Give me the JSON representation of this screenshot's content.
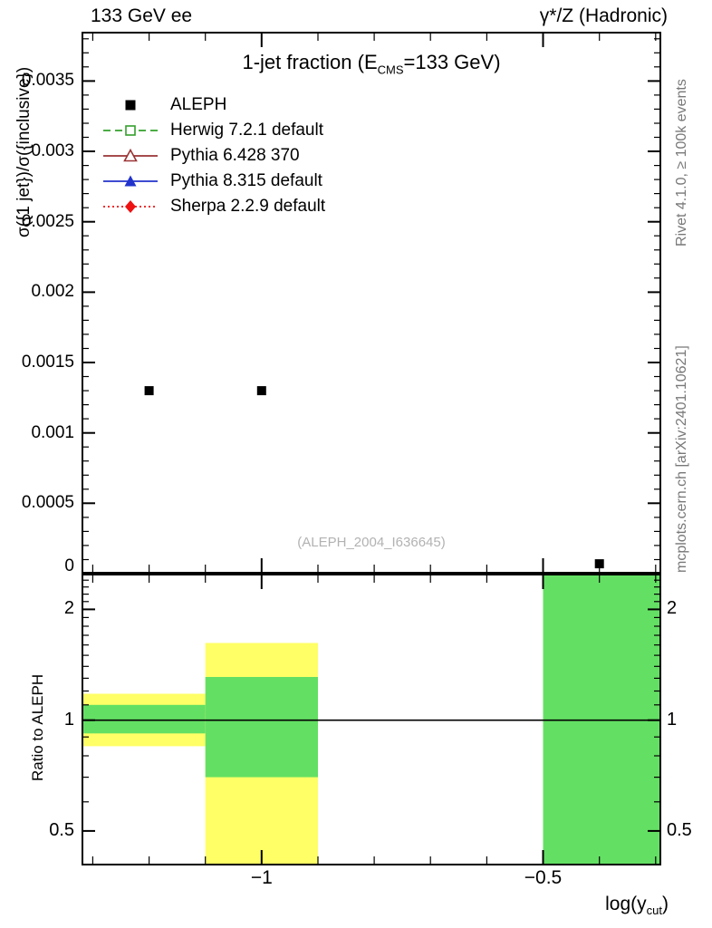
{
  "page": {
    "header_left": "133 GeV ee",
    "header_right": "γ*/Z (Hadronic)",
    "rivet_label": "Rivet 4.1.0, ≥ 100k events",
    "mcplots_label": "mcplots.cern.ch [arXiv:2401.10621]",
    "watermark": "(ALEPH_2004_I636645)"
  },
  "main_plot": {
    "title_pre": "1-jet fraction (E",
    "title_sub": "CMS",
    "title_post": "=133 GeV)",
    "ylabel": "σ({1 jet})/σ({inclusive})",
    "xlabel_pre": "log(y",
    "xlabel_sub": "cut",
    "xlabel_post": ")"
  },
  "ratio_plot": {
    "ylabel": "Ratio to ALEPH"
  },
  "legend": [
    {
      "label": "ALEPH",
      "marker": "filled-square",
      "color": "#000000",
      "line": "none"
    },
    {
      "label": "Herwig 7.2.1 default",
      "marker": "open-square",
      "color": "#33a02c",
      "line": "dashed"
    },
    {
      "label": "Pythia 6.428 370",
      "marker": "open-triangle",
      "color": "#9a3334",
      "line": "solid"
    },
    {
      "label": "Pythia 8.315 default",
      "marker": "filled-triangle",
      "color": "#2233cc",
      "line": "solid"
    },
    {
      "label": "Sherpa 2.2.9 default",
      "marker": "filled-diamond",
      "color": "#ee1111",
      "line": "dotted"
    }
  ],
  "chart_data": [
    {
      "type": "scatter",
      "title": "1-jet fraction (E_CMS=133 GeV)",
      "xlabel": "log(y_cut)",
      "ylabel": "σ({1 jet})/σ({inclusive})",
      "xlim": [
        -1.32,
        -0.29
      ],
      "ylim": [
        0,
        0.00385
      ],
      "x_minor_step": 0.1,
      "y_minor_step": 0.0001,
      "xticks": [
        {
          "v": -1,
          "label": "−1"
        },
        {
          "v": -0.5,
          "label": "−0.5"
        }
      ],
      "yticks": [
        {
          "v": 0,
          "label": "0"
        },
        {
          "v": 0.0005,
          "label": "0.0005"
        },
        {
          "v": 0.001,
          "label": "0.001"
        },
        {
          "v": 0.0015,
          "label": "0.0015"
        },
        {
          "v": 0.002,
          "label": "0.002"
        },
        {
          "v": 0.0025,
          "label": "0.0025"
        },
        {
          "v": 0.003,
          "label": "0.003"
        },
        {
          "v": 0.0035,
          "label": "0.0035"
        }
      ],
      "series": [
        {
          "name": "ALEPH",
          "marker": "filled-square",
          "color": "#000000",
          "points": [
            {
              "x": -1.2,
              "y": 0.0013
            },
            {
              "x": -1.0,
              "y": 0.0013
            },
            {
              "x": -0.4,
              "y": 7e-05
            }
          ]
        }
      ]
    },
    {
      "type": "ratio-band",
      "ylabel": "Ratio to ALEPH",
      "yscale": "log",
      "xlim": [
        -1.32,
        -0.29
      ],
      "ylim": [
        0.403,
        2.5
      ],
      "yticks": [
        {
          "v": 0.5,
          "label": "0.5"
        },
        {
          "v": 1,
          "label": "1"
        },
        {
          "v": 2,
          "label": "2"
        }
      ],
      "y_minor": [
        0.6,
        0.7,
        0.8,
        0.9,
        1.1,
        1.2,
        1.3,
        1.4,
        1.5,
        1.6,
        1.7,
        1.8,
        1.9,
        2.1,
        2.2,
        2.3,
        2.4
      ],
      "reference_line": 1,
      "band_colors": {
        "yellow": "#ffff66",
        "green": "#63e063"
      },
      "bands": [
        {
          "x0": -1.32,
          "x1": -1.1,
          "yellow": [
            0.85,
            1.18
          ],
          "green": [
            0.92,
            1.1
          ]
        },
        {
          "x0": -1.1,
          "x1": -0.9,
          "yellow": [
            0.4,
            1.62
          ],
          "green": [
            0.7,
            1.31
          ]
        },
        {
          "x0": -0.5,
          "x1": -0.29,
          "yellow": null,
          "green": [
            0.4,
            2.5
          ]
        }
      ]
    }
  ]
}
